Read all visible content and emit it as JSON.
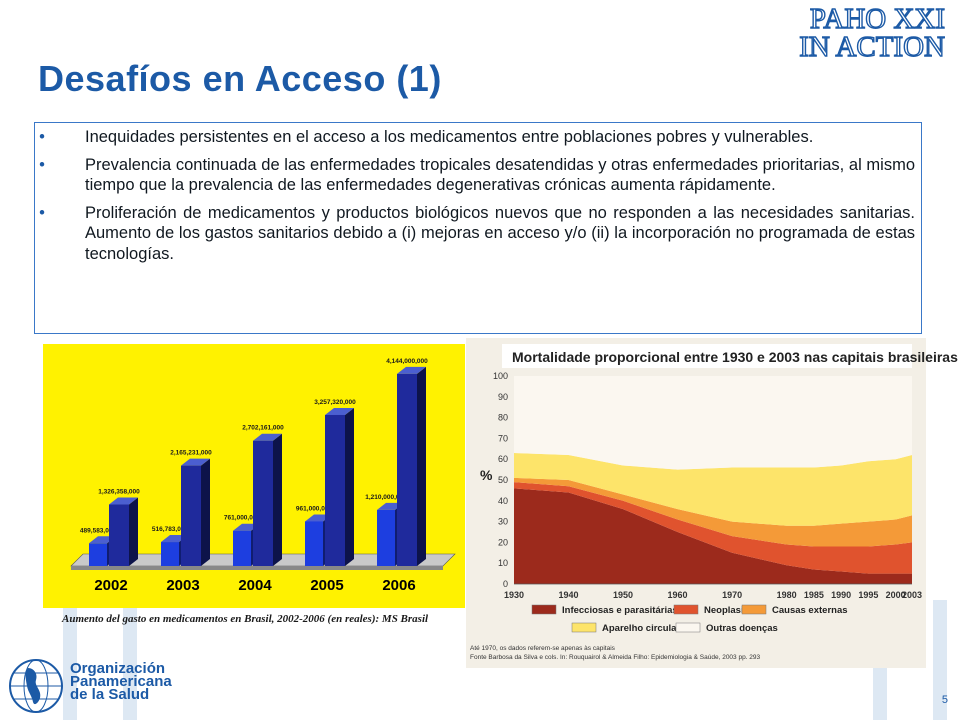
{
  "header": {
    "brand_line1": "PAHO XXI",
    "brand_line2": "IN ACTION",
    "title": "Desafíos en Acceso (1)"
  },
  "bullets": [
    "Inequidades persistentes en el acceso a los medicamentos entre   poblaciones pobres y vulnerables.",
    "Prevalencia continuada de las enfermedades tropicales desatendidas y otras enfermedades prioritarias, al mismo tiempo que la prevalencia de las enfermedades degenerativas crónicas aumenta rápidamente.",
    "Proliferación de medicamentos y productos biológicos nuevos que no responden a las necesidades sanitarias. Aumento de los gastos sanitarios debido a (i) mejoras en acceso y/o (ii) la incorporación no programada de estas tecnologías."
  ],
  "bullet_symbol": "•",
  "caption": "Aumento del gasto en medicamentos en Brasil, 2002-2006 (en reales): MS Brasil",
  "organization": {
    "line1": "Organización",
    "line2": "Panamericana",
    "line3": "de la Salud"
  },
  "page_number": "5",
  "colors": {
    "title_blue": "#1c5aa6",
    "chart_background": "#fff200",
    "bar_dark": "#1f2a9c",
    "bar_light": "#1d3ee0"
  },
  "chart_data": [
    {
      "type": "bar",
      "title": "",
      "categories": [
        "2002",
        "2003",
        "2004",
        "2005",
        "2006"
      ],
      "series": [
        {
          "values": [
            489583000,
            516783000,
            761000000,
            961000000,
            1210000000
          ]
        },
        {
          "values": [
            1326358000,
            2165231000,
            2702161000,
            3257320000,
            4144000000
          ]
        }
      ],
      "data_labels": [
        [
          "489,583,000",
          "516,783,000",
          "761,000,000",
          "961,000,000",
          "1,210,000,000"
        ],
        [
          "1,326,358,000",
          "2,165,231,000",
          "2,702,161,000",
          "3,257,320,000",
          "4,144,000,000"
        ]
      ],
      "ylim": [
        0,
        4400000000
      ],
      "grid": false
    },
    {
      "type": "area",
      "title": "Mortalidade proporcional entre 1930 e 2003 nas capitais brasileiras",
      "ylabel": "%",
      "x": [
        1930,
        1940,
        1950,
        1960,
        1970,
        1980,
        1985,
        1990,
        1995,
        2000,
        2003
      ],
      "x_ticks": [
        "1930",
        "1940",
        "1950",
        "1960",
        "1970",
        "1980",
        "1985",
        "1990",
        "1995",
        "2000",
        "2003"
      ],
      "y_ticks": [
        "0",
        "10",
        "20",
        "30",
        "40",
        "50",
        "60",
        "70",
        "80",
        "90",
        "100"
      ],
      "ylim": [
        0,
        100
      ],
      "stacked": true,
      "series": [
        {
          "name": "Infecciosas e parasitárias",
          "color": "#9c2a1c",
          "values": [
            46,
            44,
            36,
            25,
            15,
            9,
            7,
            6,
            5,
            5,
            5
          ]
        },
        {
          "name": "Neoplasias",
          "color": "#e0532e",
          "values": [
            3,
            3,
            4,
            6,
            8,
            10,
            11,
            12,
            13,
            14,
            15
          ]
        },
        {
          "name": "Causas externas",
          "color": "#f49a38",
          "values": [
            2,
            3,
            3,
            5,
            7,
            9,
            10,
            11,
            12,
            12,
            13
          ]
        },
        {
          "name": "Aparelho circulatório",
          "color": "#fde46a",
          "values": [
            12,
            12,
            14,
            19,
            26,
            28,
            28,
            28,
            29,
            29,
            29
          ]
        },
        {
          "name": "Outras doenças",
          "color": "#fbf7f0",
          "values": [
            37,
            38,
            43,
            45,
            44,
            44,
            44,
            43,
            41,
            40,
            38
          ]
        }
      ],
      "legend_position": "bottom",
      "footnote_lines": [
        "Até 1970, os dados referem-se apenas às capitais",
        "Fonte Barbosa da Silva e cols. In: Rouquairol & Almeida Filho: Epidemiologia & Saúde, 2003 pp. 293"
      ]
    }
  ]
}
